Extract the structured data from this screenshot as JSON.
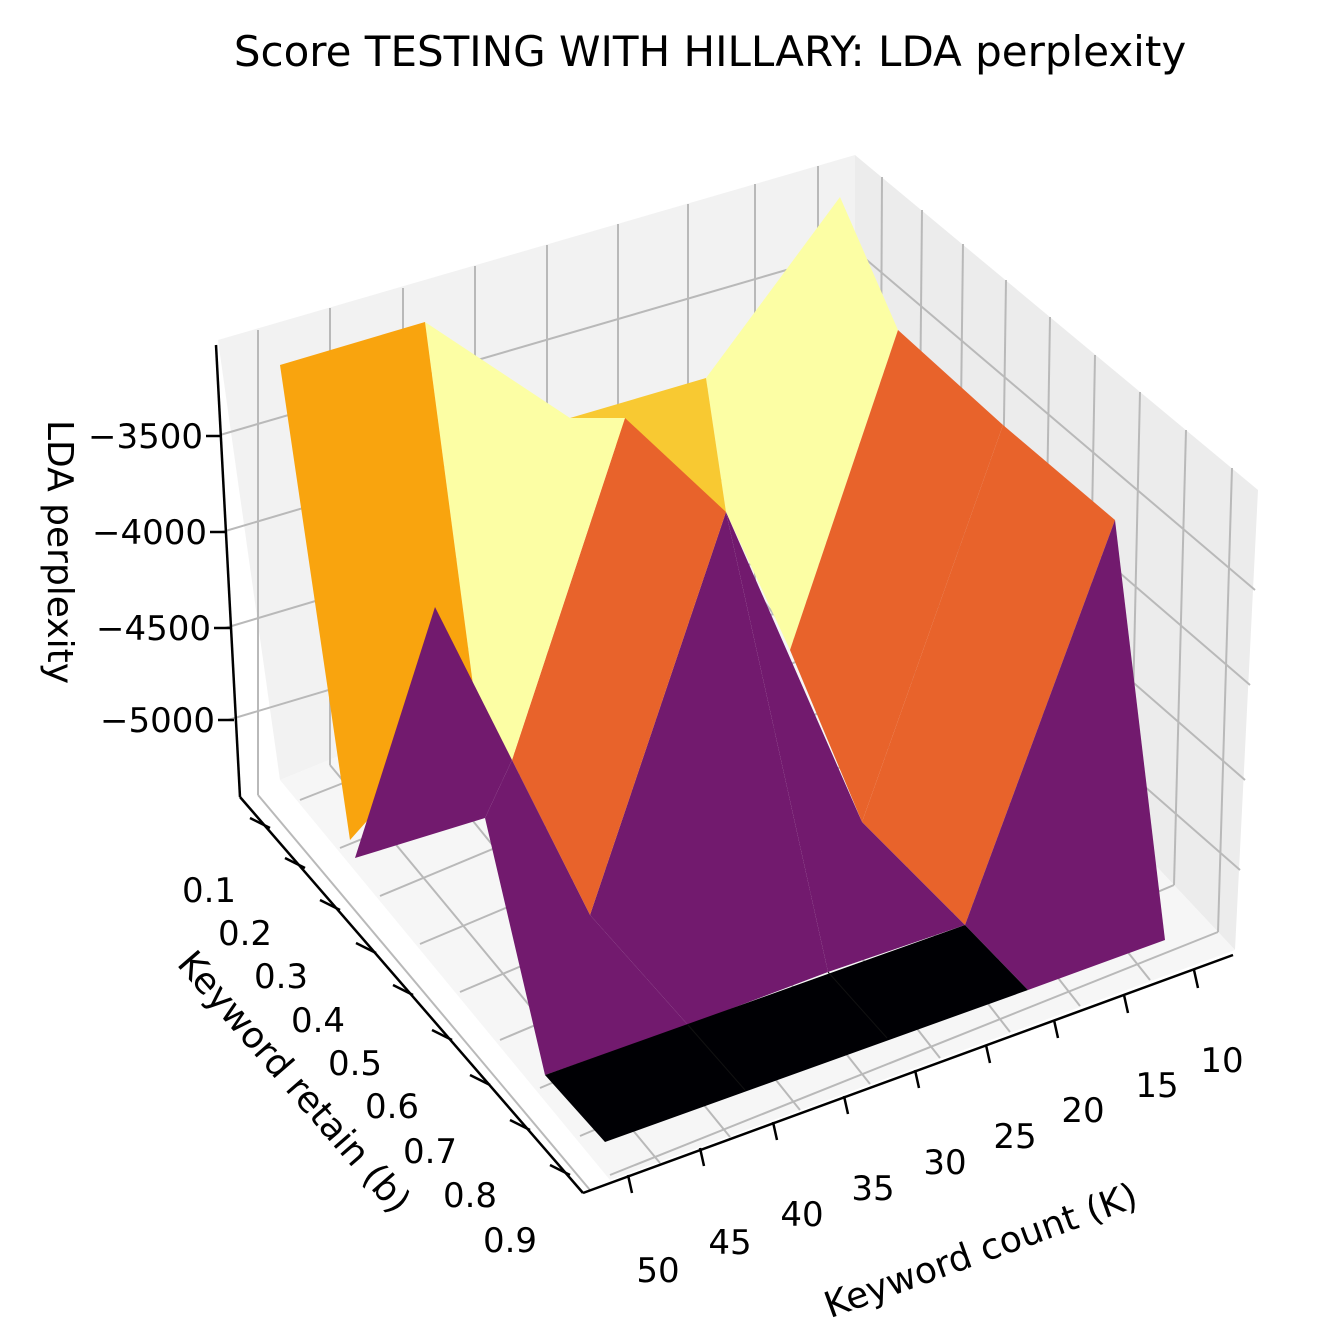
{
  "chart_data": {
    "type": "surface3d",
    "title": "Score TESTING WITH HILLARY: LDA perplexity",
    "xlabel": "Keyword count (K)",
    "ylabel": "Keyword retain (b)",
    "zlabel": "LDA perplexity",
    "x_ticks": [
      "10",
      "15",
      "20",
      "25",
      "30",
      "35",
      "40",
      "45",
      "50"
    ],
    "y_ticks": [
      "0.1",
      "0.2",
      "0.3",
      "0.4",
      "0.5",
      "0.6",
      "0.7",
      "0.8",
      "0.9"
    ],
    "z_ticks": [
      "−3500",
      "−4000",
      "−4500",
      "−5000"
    ],
    "surface_colors": {
      "black": "#000004",
      "purple": "#721a6e",
      "orange": "#e8632b",
      "amber": "#f9a40e",
      "gold": "#f8c932",
      "yellow": "#fcfea4"
    },
    "grid": true
  }
}
